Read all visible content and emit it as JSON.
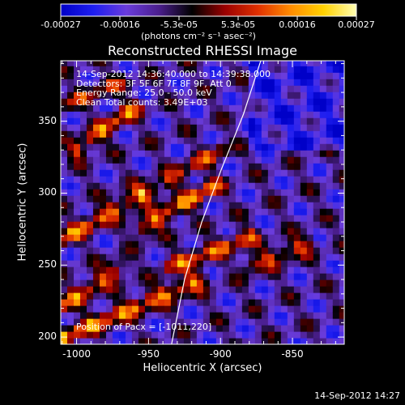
{
  "chart_data": {
    "type": "heatmap",
    "title": "Reconstructed RHESSI Image",
    "xlabel": "Heliocentric X (arcsec)",
    "ylabel": "Heliocentric Y (arcsec)",
    "xlim": [
      -1011,
      -814
    ],
    "ylim": [
      195,
      392
    ],
    "x_ticks": [
      -1000,
      -950,
      -900,
      -850
    ],
    "y_ticks": [
      200,
      250,
      300,
      350
    ],
    "colorbar": {
      "ticks": [
        "-0.00027",
        "-0.00016",
        "-5.3e-05",
        "5.3e-05",
        "0.00016",
        "0.00027"
      ],
      "units_label": "(photons cm⁻² s⁻¹ asec⁻²)",
      "range": [
        -0.00027,
        0.00027
      ],
      "colormap": [
        "#0000c8",
        "#1e1ef0",
        "#6a3cdc",
        "#4a1e8c",
        "#000000",
        "#9a0000",
        "#e03000",
        "#ff8c00",
        "#ffd200",
        "#ffffb4"
      ]
    },
    "info_lines": [
      "14-Sep-2012 14:36:40.000 to 14:39:38.000",
      "Detectors: 3F 5F 6F 7F 8F 9F, Att 0",
      "Energy Range: 25.0 - 50.0 keV",
      "Clean     Total counts: 3.49E+03"
    ],
    "pacx": "Position of Pacx = [-1011,220]",
    "limb_curve": [
      [
        -934,
        195
      ],
      [
        -925,
        240
      ],
      [
        -913,
        280
      ],
      [
        -900,
        315
      ],
      [
        -884,
        355
      ],
      [
        -872,
        392
      ]
    ],
    "bands": [
      {
        "x0": -1011,
        "y0": 200,
        "x1": -915,
        "y1": 240,
        "amp": 0.00027
      },
      {
        "x0": -1011,
        "y0": 222,
        "x1": -970,
        "y1": 248,
        "amp": 0.00024
      },
      {
        "x0": -1011,
        "y0": 268,
        "x1": -955,
        "y1": 300,
        "amp": 0.00025
      },
      {
        "x0": -1000,
        "y0": 330,
        "x1": -960,
        "y1": 360,
        "amp": 0.00024
      },
      {
        "x0": -955,
        "y0": 275,
        "x1": -905,
        "y1": 305,
        "amp": 0.00026
      },
      {
        "x0": -935,
        "y0": 250,
        "x1": -880,
        "y1": 270,
        "amp": 0.00023
      },
      {
        "x0": -880,
        "y0": 250,
        "x1": -840,
        "y1": 265,
        "amp": 0.00021
      },
      {
        "x0": -950,
        "y0": 300,
        "x1": -900,
        "y1": 330,
        "amp": 0.00018
      },
      {
        "x0": -1011,
        "y0": 360,
        "x1": -970,
        "y1": 378,
        "amp": 0.00016
      }
    ]
  },
  "footer_timestamp": "14-Sep-2012 14:27"
}
